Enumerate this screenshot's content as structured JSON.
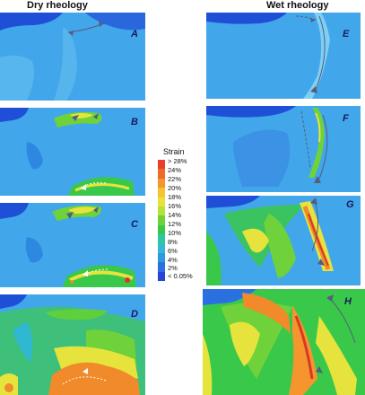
{
  "titles": {
    "left": "Dry rheology",
    "right": "Wet rheology"
  },
  "panels": {
    "A": "A",
    "B": "B",
    "C": "C",
    "D": "D",
    "E": "E",
    "F": "F",
    "G": "G",
    "H": "H"
  },
  "legend": {
    "title": "Strain",
    "ticks": [
      "> 28%",
      "24%",
      "22%",
      "20%",
      "18%",
      "16%",
      "14%",
      "12%",
      "10%",
      "8%",
      "6%",
      "4%",
      "2%",
      "< 0.05%"
    ],
    "colors": [
      "#e8402a",
      "#f06a2a",
      "#f5952e",
      "#f7c234",
      "#e6e43c",
      "#b6e03c",
      "#6fd23a",
      "#3ac84a",
      "#2ec8a0",
      "#34b8d8",
      "#2f98e0",
      "#2a70e0",
      "#2446d8"
    ]
  },
  "colors": {
    "base_blue": "#3b9ee6",
    "deep_blue": "#1f4fd6",
    "green": "#3cd04a",
    "yellow": "#e8e63c",
    "orange": "#f08a2a",
    "red": "#d8382a",
    "arrow": "#555e7a"
  }
}
